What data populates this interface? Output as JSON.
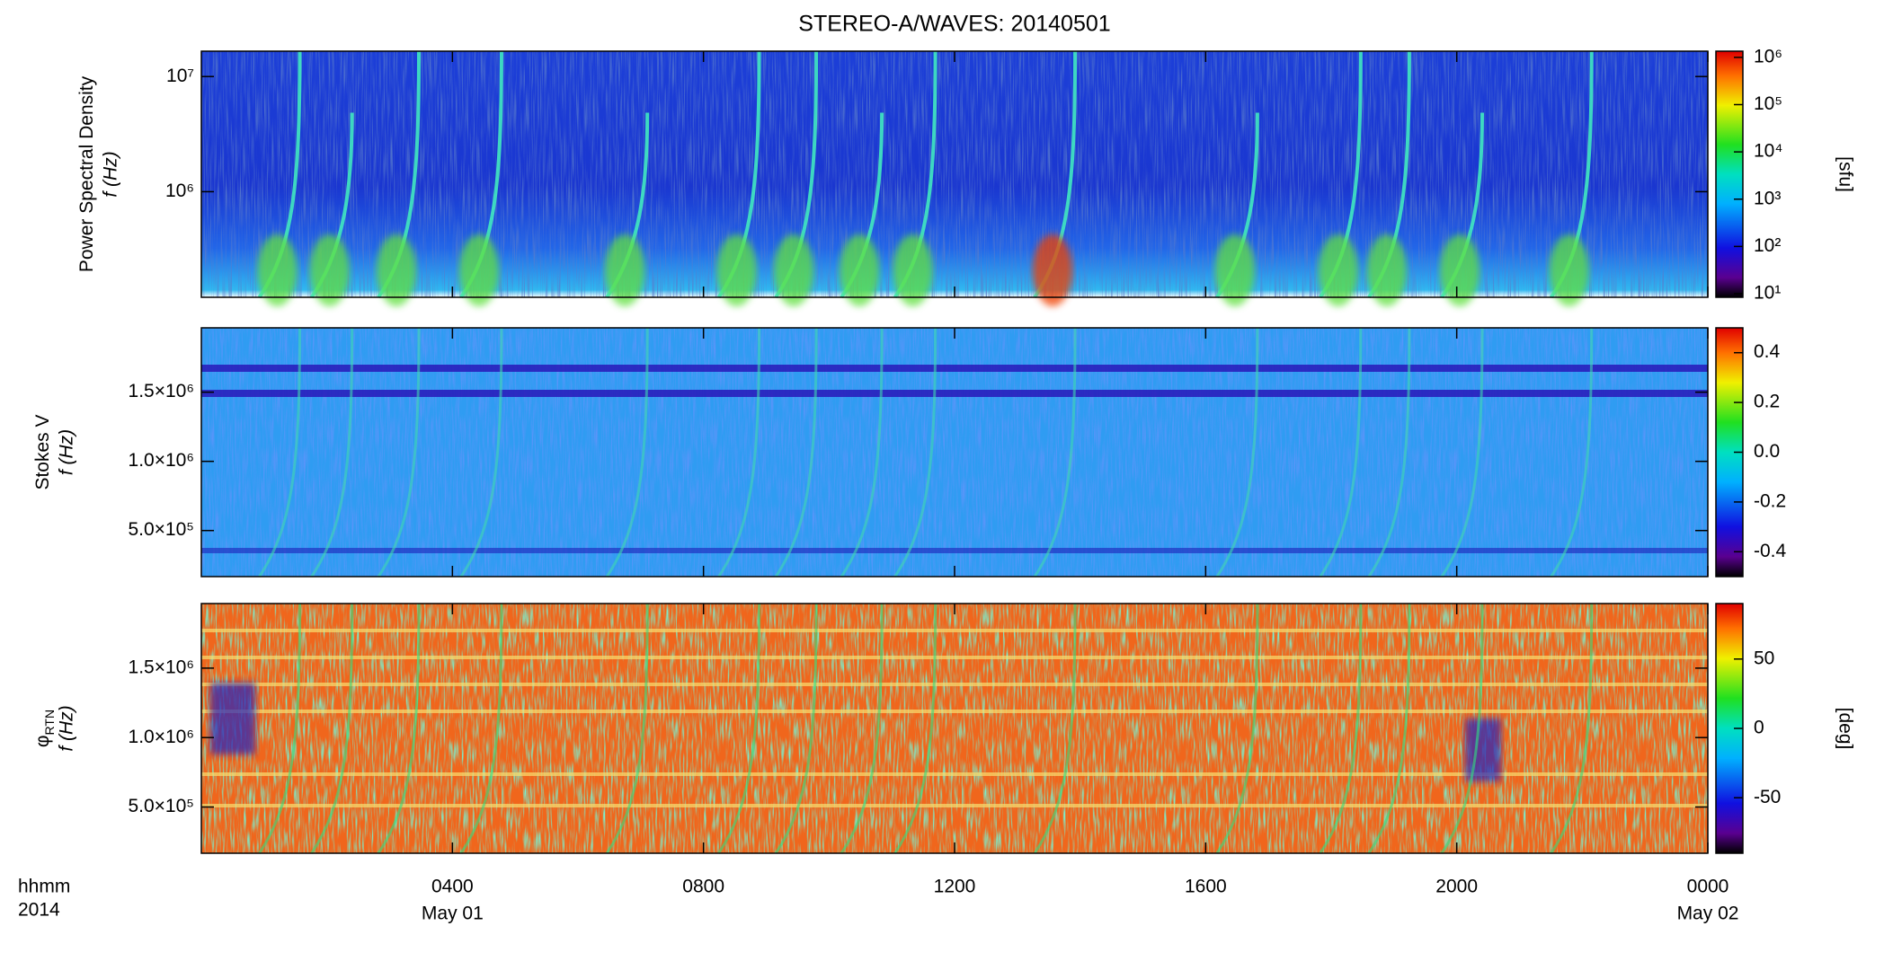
{
  "chart_data": [
    {
      "type": "heatmap",
      "title": "STEREO-A/WAVES: 20140501",
      "ylabel": [
        "Power Spectral Density",
        "f (Hz)"
      ],
      "yscale": "log",
      "ylim": [
        121000,
        16600000
      ],
      "yticks": [
        {
          "value": 1000000,
          "label": "10⁶"
        },
        {
          "value": 10000000,
          "label": "10⁷"
        }
      ],
      "colorbar": {
        "scale": "log",
        "clim": [
          8.4,
          1350000
        ],
        "label": "[sfu]",
        "cticks": [
          {
            "value": 10,
            "label": "10¹"
          },
          {
            "value": 100,
            "label": "10²"
          },
          {
            "value": 1000,
            "label": "10³"
          },
          {
            "value": 10000,
            "label": "10⁴"
          },
          {
            "value": 100000,
            "label": "10⁵"
          },
          {
            "value": 1000000,
            "label": "10⁶"
          }
        ]
      }
    },
    {
      "type": "heatmap",
      "ylabel": [
        "Stokes V",
        "f (Hz)"
      ],
      "yscale": "linear",
      "ylim": [
        167000,
        1965000
      ],
      "yticks": [
        {
          "value": 500000,
          "label": "5.0×10⁵"
        },
        {
          "value": 1000000,
          "label": "1.0×10⁶"
        },
        {
          "value": 1500000,
          "label": "1.5×10⁶"
        }
      ],
      "colorbar": {
        "scale": "linear",
        "clim": [
          -0.5,
          0.5
        ],
        "cticks": [
          -0.4,
          -0.2,
          {
            "value": 0,
            "label": "0.0"
          },
          0.2,
          0.4
        ]
      }
    },
    {
      "type": "heatmap",
      "ylabel": [
        "φ",
        "f (Hz)"
      ],
      "ylabel_sub": "RTN",
      "yscale": "linear",
      "ylim": [
        167000,
        1965000
      ],
      "yticks": [
        {
          "value": 500000,
          "label": "5.0×10⁵"
        },
        {
          "value": 1000000,
          "label": "1.0×10⁶"
        },
        {
          "value": 1500000,
          "label": "1.5×10⁶"
        }
      ],
      "colorbar": {
        "scale": "linear",
        "clim": [
          -90,
          90
        ],
        "label": "[deg]",
        "cticks": [
          -50,
          0,
          50
        ]
      },
      "xlim": [
        0,
        24
      ],
      "xticks": [
        {
          "value": 4,
          "label": "0400"
        },
        {
          "value": 8,
          "label": "0800"
        },
        {
          "value": 12,
          "label": "1200"
        },
        {
          "value": 16,
          "label": "1600"
        },
        {
          "value": 20,
          "label": "2000"
        },
        {
          "value": 24,
          "label": "0000"
        }
      ],
      "xtick_dates": [
        {
          "value": 4,
          "label": "May 01"
        },
        {
          "value": 24,
          "label": "May 02"
        }
      ],
      "x_title": [
        "hhmm",
        "2014"
      ]
    }
  ]
}
